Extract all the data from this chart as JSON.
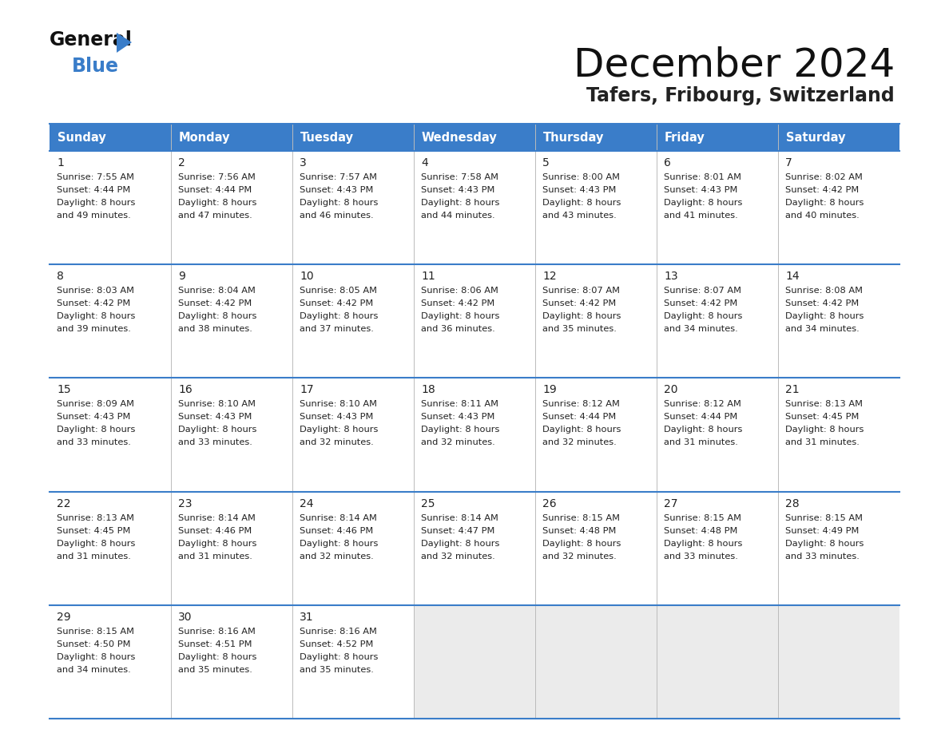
{
  "title": "December 2024",
  "subtitle": "Tafers, Fribourg, Switzerland",
  "header_bg_color": "#3A7DC9",
  "header_text_color": "#FFFFFF",
  "days_of_week": [
    "Sunday",
    "Monday",
    "Tuesday",
    "Wednesday",
    "Thursday",
    "Friday",
    "Saturday"
  ],
  "cell_text_color": "#222222",
  "border_color": "#3A7DC9",
  "empty_cell_color": "#EBEBEB",
  "white_cell_color": "#FFFFFF",
  "calendar": [
    [
      {
        "day": "1",
        "sunrise": "7:55 AM",
        "sunset": "4:44 PM",
        "daylight_h": "8 hours",
        "daylight_m": "and 49 minutes."
      },
      {
        "day": "2",
        "sunrise": "7:56 AM",
        "sunset": "4:44 PM",
        "daylight_h": "8 hours",
        "daylight_m": "and 47 minutes."
      },
      {
        "day": "3",
        "sunrise": "7:57 AM",
        "sunset": "4:43 PM",
        "daylight_h": "8 hours",
        "daylight_m": "and 46 minutes."
      },
      {
        "day": "4",
        "sunrise": "7:58 AM",
        "sunset": "4:43 PM",
        "daylight_h": "8 hours",
        "daylight_m": "and 44 minutes."
      },
      {
        "day": "5",
        "sunrise": "8:00 AM",
        "sunset": "4:43 PM",
        "daylight_h": "8 hours",
        "daylight_m": "and 43 minutes."
      },
      {
        "day": "6",
        "sunrise": "8:01 AM",
        "sunset": "4:43 PM",
        "daylight_h": "8 hours",
        "daylight_m": "and 41 minutes."
      },
      {
        "day": "7",
        "sunrise": "8:02 AM",
        "sunset": "4:42 PM",
        "daylight_h": "8 hours",
        "daylight_m": "and 40 minutes."
      }
    ],
    [
      {
        "day": "8",
        "sunrise": "8:03 AM",
        "sunset": "4:42 PM",
        "daylight_h": "8 hours",
        "daylight_m": "and 39 minutes."
      },
      {
        "day": "9",
        "sunrise": "8:04 AM",
        "sunset": "4:42 PM",
        "daylight_h": "8 hours",
        "daylight_m": "and 38 minutes."
      },
      {
        "day": "10",
        "sunrise": "8:05 AM",
        "sunset": "4:42 PM",
        "daylight_h": "8 hours",
        "daylight_m": "and 37 minutes."
      },
      {
        "day": "11",
        "sunrise": "8:06 AM",
        "sunset": "4:42 PM",
        "daylight_h": "8 hours",
        "daylight_m": "and 36 minutes."
      },
      {
        "day": "12",
        "sunrise": "8:07 AM",
        "sunset": "4:42 PM",
        "daylight_h": "8 hours",
        "daylight_m": "and 35 minutes."
      },
      {
        "day": "13",
        "sunrise": "8:07 AM",
        "sunset": "4:42 PM",
        "daylight_h": "8 hours",
        "daylight_m": "and 34 minutes."
      },
      {
        "day": "14",
        "sunrise": "8:08 AM",
        "sunset": "4:42 PM",
        "daylight_h": "8 hours",
        "daylight_m": "and 34 minutes."
      }
    ],
    [
      {
        "day": "15",
        "sunrise": "8:09 AM",
        "sunset": "4:43 PM",
        "daylight_h": "8 hours",
        "daylight_m": "and 33 minutes."
      },
      {
        "day": "16",
        "sunrise": "8:10 AM",
        "sunset": "4:43 PM",
        "daylight_h": "8 hours",
        "daylight_m": "and 33 minutes."
      },
      {
        "day": "17",
        "sunrise": "8:10 AM",
        "sunset": "4:43 PM",
        "daylight_h": "8 hours",
        "daylight_m": "and 32 minutes."
      },
      {
        "day": "18",
        "sunrise": "8:11 AM",
        "sunset": "4:43 PM",
        "daylight_h": "8 hours",
        "daylight_m": "and 32 minutes."
      },
      {
        "day": "19",
        "sunrise": "8:12 AM",
        "sunset": "4:44 PM",
        "daylight_h": "8 hours",
        "daylight_m": "and 32 minutes."
      },
      {
        "day": "20",
        "sunrise": "8:12 AM",
        "sunset": "4:44 PM",
        "daylight_h": "8 hours",
        "daylight_m": "and 31 minutes."
      },
      {
        "day": "21",
        "sunrise": "8:13 AM",
        "sunset": "4:45 PM",
        "daylight_h": "8 hours",
        "daylight_m": "and 31 minutes."
      }
    ],
    [
      {
        "day": "22",
        "sunrise": "8:13 AM",
        "sunset": "4:45 PM",
        "daylight_h": "8 hours",
        "daylight_m": "and 31 minutes."
      },
      {
        "day": "23",
        "sunrise": "8:14 AM",
        "sunset": "4:46 PM",
        "daylight_h": "8 hours",
        "daylight_m": "and 31 minutes."
      },
      {
        "day": "24",
        "sunrise": "8:14 AM",
        "sunset": "4:46 PM",
        "daylight_h": "8 hours",
        "daylight_m": "and 32 minutes."
      },
      {
        "day": "25",
        "sunrise": "8:14 AM",
        "sunset": "4:47 PM",
        "daylight_h": "8 hours",
        "daylight_m": "and 32 minutes."
      },
      {
        "day": "26",
        "sunrise": "8:15 AM",
        "sunset": "4:48 PM",
        "daylight_h": "8 hours",
        "daylight_m": "and 32 minutes."
      },
      {
        "day": "27",
        "sunrise": "8:15 AM",
        "sunset": "4:48 PM",
        "daylight_h": "8 hours",
        "daylight_m": "and 33 minutes."
      },
      {
        "day": "28",
        "sunrise": "8:15 AM",
        "sunset": "4:49 PM",
        "daylight_h": "8 hours",
        "daylight_m": "and 33 minutes."
      }
    ],
    [
      {
        "day": "29",
        "sunrise": "8:15 AM",
        "sunset": "4:50 PM",
        "daylight_h": "8 hours",
        "daylight_m": "and 34 minutes."
      },
      {
        "day": "30",
        "sunrise": "8:16 AM",
        "sunset": "4:51 PM",
        "daylight_h": "8 hours",
        "daylight_m": "and 35 minutes."
      },
      {
        "day": "31",
        "sunrise": "8:16 AM",
        "sunset": "4:52 PM",
        "daylight_h": "8 hours",
        "daylight_m": "and 35 minutes."
      },
      null,
      null,
      null,
      null
    ]
  ]
}
